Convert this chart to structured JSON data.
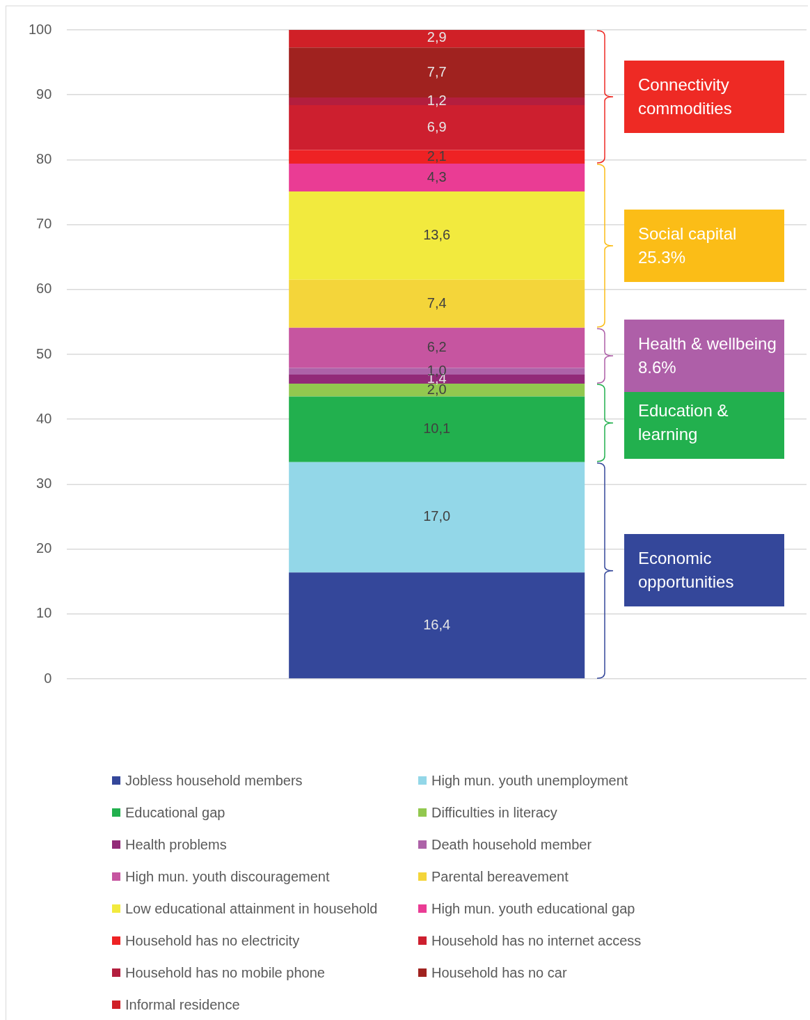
{
  "chart_data": {
    "type": "bar",
    "stacked": true,
    "categories": [
      null
    ],
    "ylim": [
      0,
      100
    ],
    "yticks": [
      0,
      10,
      20,
      30,
      40,
      50,
      60,
      70,
      80,
      90,
      100
    ],
    "grid": "y",
    "tick_labels": "y",
    "legend": "bottom",
    "series": [
      {
        "name": "Jobless household members",
        "color": "#34479a",
        "values": [
          16.4
        ],
        "value_labels": [
          "16,4"
        ]
      },
      {
        "name": "High mun. youth unemployment",
        "color": "#93d7e8",
        "values": [
          17.0
        ],
        "value_labels": [
          "17,0"
        ]
      },
      {
        "name": "Educational gap",
        "color": "#22b04e",
        "values": [
          10.1
        ],
        "value_labels": [
          "10,1"
        ]
      },
      {
        "name": "Difficulties in literacy",
        "color": "#92c84f",
        "values": [
          2.0
        ],
        "value_labels": [
          "2,0"
        ]
      },
      {
        "name": "Health problems",
        "color": "#922a78",
        "values": [
          1.4
        ],
        "value_labels": [
          "1,4"
        ]
      },
      {
        "name": "Death household member",
        "color": "#ad62a8",
        "values": [
          1.0
        ],
        "value_labels": [
          "1,0"
        ]
      },
      {
        "name": "High mun. youth discouragement",
        "color": "#c655a0",
        "values": [
          6.2
        ],
        "value_labels": [
          "6,2"
        ]
      },
      {
        "name": "Parental bereavement",
        "color": "#f4d53a",
        "values": [
          7.4
        ],
        "value_labels": [
          "7,4"
        ]
      },
      {
        "name": "Low educational attainment in household",
        "color": "#f2ea3e",
        "values": [
          13.6
        ],
        "value_labels": [
          "13,6"
        ]
      },
      {
        "name": "High mun. youth educational gap",
        "color": "#ea3c94",
        "values": [
          4.3
        ],
        "value_labels": [
          "4,3"
        ]
      },
      {
        "name": "Household has no electricity",
        "color": "#ee2224",
        "values": [
          2.1
        ],
        "value_labels": [
          "2,1"
        ]
      },
      {
        "name": "Household has no internet access",
        "color": "#cd1f2f",
        "values": [
          6.9
        ],
        "value_labels": [
          "6,9"
        ]
      },
      {
        "name": "Household has no mobile phone",
        "color": "#b31e3e",
        "values": [
          1.2
        ],
        "value_labels": [
          "1,2"
        ]
      },
      {
        "name": "Household has no car",
        "color": "#a0221f",
        "values": [
          7.7
        ],
        "value_labels": [
          "7,7"
        ]
      },
      {
        "name": "Informal residence",
        "color": "#d02027",
        "values": [
          2.9
        ],
        "value_labels": [
          "2,9"
        ]
      }
    ],
    "annotations": [
      "Economic opportunities",
      "Education & learning",
      "Health & wellbeing 8.6%",
      "Social capital 25.3%",
      "Connectivity commodities"
    ]
  }
}
